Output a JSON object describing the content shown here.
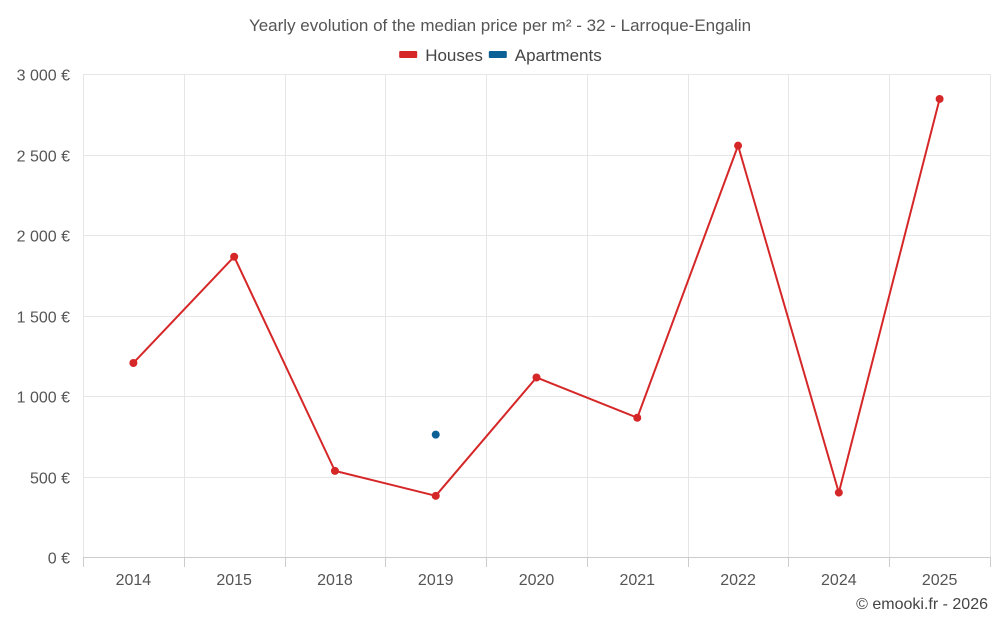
{
  "chart_data": {
    "type": "line",
    "title": "Yearly evolution of the median price per m² - 32 - Larroque-Engalin",
    "categories": [
      "2014",
      "2015",
      "2018",
      "2019",
      "2020",
      "2021",
      "2022",
      "2024",
      "2025"
    ],
    "series": [
      {
        "name": "Houses",
        "color": "#d62728",
        "values": [
          1205,
          1865,
          535,
          380,
          1115,
          865,
          2555,
          400,
          2845
        ]
      },
      {
        "name": "Apartments",
        "color": "#0b6196",
        "values": [
          null,
          null,
          null,
          760,
          null,
          null,
          null,
          null,
          null
        ]
      }
    ],
    "y_ticks": [
      0,
      500,
      1000,
      1500,
      2000,
      2500,
      3000
    ],
    "y_tick_labels": [
      "0 €",
      "500 €",
      "1 000 €",
      "1 500 €",
      "2 000 €",
      "2 500 €",
      "3 000 €"
    ],
    "ylim": [
      0,
      3000
    ],
    "xlabel": "",
    "ylabel": "",
    "legend_position": "top-center",
    "grid": true
  },
  "credit": "© emooki.fr - 2026"
}
